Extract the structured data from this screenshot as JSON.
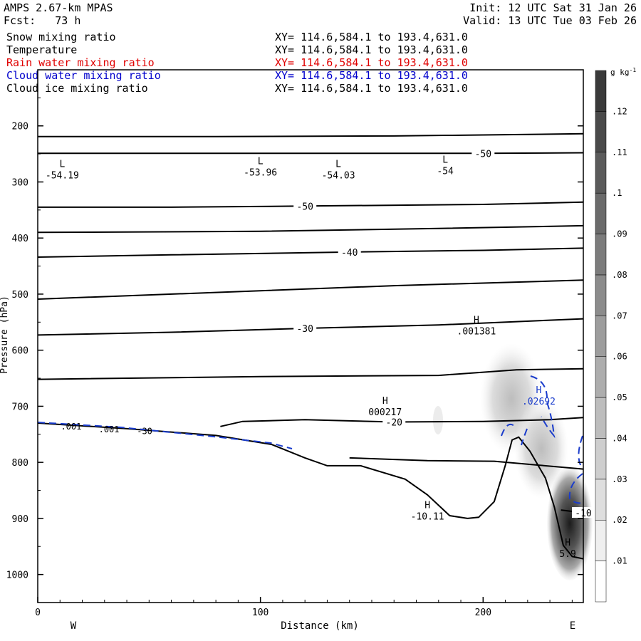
{
  "header": {
    "title": "AMPS 2.67-km MPAS",
    "init": "Init: 12 UTC Sat 31 Jan 26",
    "forecast": "Fcst:   73 h",
    "valid": "Valid: 13 UTC Tue 03 Feb 26"
  },
  "fields": [
    {
      "name": "Snow mixing ratio",
      "xy": "XY= 114.6,584.1 to 193.4,631.0",
      "color": "#000000"
    },
    {
      "name": "Temperature",
      "xy": "XY= 114.6,584.1 to 193.4,631.0",
      "color": "#000000"
    },
    {
      "name": "Rain water mixing ratio",
      "xy": "XY= 114.6,584.1 to 193.4,631.0",
      "color": "#e00000"
    },
    {
      "name": "Cloud water mixing ratio",
      "xy": "XY= 114.6,584.1 to 193.4,631.0",
      "color": "#0000cc"
    },
    {
      "name": "Cloud ice mixing ratio",
      "xy": "XY= 114.6,584.1 to 193.4,631.0",
      "color": "#000000"
    }
  ],
  "chart_data": {
    "type": "contour cross-section",
    "xlabel": "Distance (km)",
    "ylabel": "Pressure (hPa)",
    "xlim": [
      0,
      245
    ],
    "ylim": [
      100,
      1050
    ],
    "x_ticks": [
      "0",
      "100",
      "200"
    ],
    "y_ticks": [
      "200",
      "300",
      "400",
      "500",
      "600",
      "700",
      "800",
      "900",
      "1000"
    ],
    "west_label": "W",
    "east_label": "E",
    "colorbar": {
      "unit": "g kg",
      "unit_sup": "-1",
      "levels": [
        ".01",
        ".02",
        ".03",
        ".04",
        ".05",
        ".06",
        ".07",
        ".08",
        ".09",
        ".1",
        ".11",
        ".12"
      ]
    },
    "isotherms": [
      {
        "label": "",
        "points": [
          [
            0,
            219
          ],
          [
            80,
            219
          ],
          [
            160,
            218
          ],
          [
            245,
            214
          ]
        ]
      },
      {
        "label": "-50",
        "points": [
          [
            0,
            249
          ],
          [
            120,
            249
          ],
          [
            200,
            249
          ],
          [
            245,
            248
          ]
        ]
      },
      {
        "label": "-50",
        "points": [
          [
            0,
            345
          ],
          [
            60,
            345
          ],
          [
            120,
            343
          ],
          [
            200,
            340
          ],
          [
            245,
            336
          ]
        ]
      },
      {
        "label": "",
        "points": [
          [
            0,
            390
          ],
          [
            100,
            388
          ],
          [
            180,
            383
          ],
          [
            245,
            378
          ]
        ]
      },
      {
        "label": "-40",
        "points": [
          [
            0,
            434
          ],
          [
            60,
            430
          ],
          [
            140,
            425
          ],
          [
            200,
            422
          ],
          [
            245,
            418
          ]
        ]
      },
      {
        "label": "",
        "points": [
          [
            0,
            509
          ],
          [
            80,
            497
          ],
          [
            160,
            485
          ],
          [
            245,
            475
          ]
        ]
      },
      {
        "label": "-30",
        "points": [
          [
            0,
            573
          ],
          [
            60,
            568
          ],
          [
            120,
            561
          ],
          [
            180,
            555
          ],
          [
            245,
            544
          ]
        ]
      },
      {
        "label": "",
        "points": [
          [
            0,
            652
          ],
          [
            100,
            647
          ],
          [
            180,
            645
          ],
          [
            215,
            635
          ],
          [
            245,
            633
          ]
        ]
      },
      {
        "label": "-20",
        "points": [
          [
            82,
            736
          ],
          [
            92,
            727
          ],
          [
            120,
            724
          ],
          [
            160,
            728
          ],
          [
            200,
            727
          ],
          [
            230,
            724
          ],
          [
            245,
            720
          ]
        ]
      },
      {
        "label": "",
        "points": [
          [
            140,
            792
          ],
          [
            175,
            797
          ],
          [
            205,
            798
          ],
          [
            225,
            805
          ],
          [
            245,
            812
          ]
        ]
      },
      {
        "label": "-10",
        "points": [
          [
            235,
            885
          ],
          [
            245,
            890
          ]
        ]
      }
    ],
    "extrema": [
      {
        "type": "L",
        "value": "-54.19",
        "x": 11,
        "p": 285
      },
      {
        "type": "L",
        "value": "-53.96",
        "x": 100,
        "p": 280
      },
      {
        "type": "L",
        "value": "-54.03",
        "x": 135,
        "p": 285
      },
      {
        "type": "L",
        "value": "-54",
        "x": 183,
        "p": 277
      },
      {
        "type": "H",
        "value": ".001381",
        "x": 197,
        "p": 563
      },
      {
        "type": "H",
        "value": "000217",
        "x": 156,
        "p": 707
      },
      {
        "type": "H",
        "value": "-10.11",
        "x": 175,
        "p": 893
      },
      {
        "type": "H",
        "value": "5.9",
        "x": 238,
        "p": 960
      }
    ],
    "blue_extrema": [
      {
        "type": "H",
        "value": ".02692",
        "x": 225,
        "p": 688
      }
    ],
    "near_surface_labels": [
      {
        "value": ".001",
        "x": 32,
        "p": 740
      },
      {
        "value": ".001",
        "x": 15,
        "p": 735
      },
      {
        "value": "-30",
        "x": 48,
        "p": 743
      }
    ],
    "terrain": [
      [
        0,
        730
      ],
      [
        40,
        740
      ],
      [
        80,
        752
      ],
      [
        105,
        768
      ],
      [
        120,
        792
      ],
      [
        130,
        806
      ],
      [
        145,
        806
      ],
      [
        165,
        830
      ],
      [
        175,
        858
      ],
      [
        185,
        895
      ],
      [
        193,
        900
      ],
      [
        198,
        898
      ],
      [
        205,
        870
      ],
      [
        210,
        805
      ],
      [
        213,
        760
      ],
      [
        216,
        755
      ],
      [
        221,
        780
      ],
      [
        228,
        828
      ],
      [
        232,
        880
      ],
      [
        236,
        948
      ],
      [
        240,
        968
      ],
      [
        245,
        972
      ]
    ]
  }
}
